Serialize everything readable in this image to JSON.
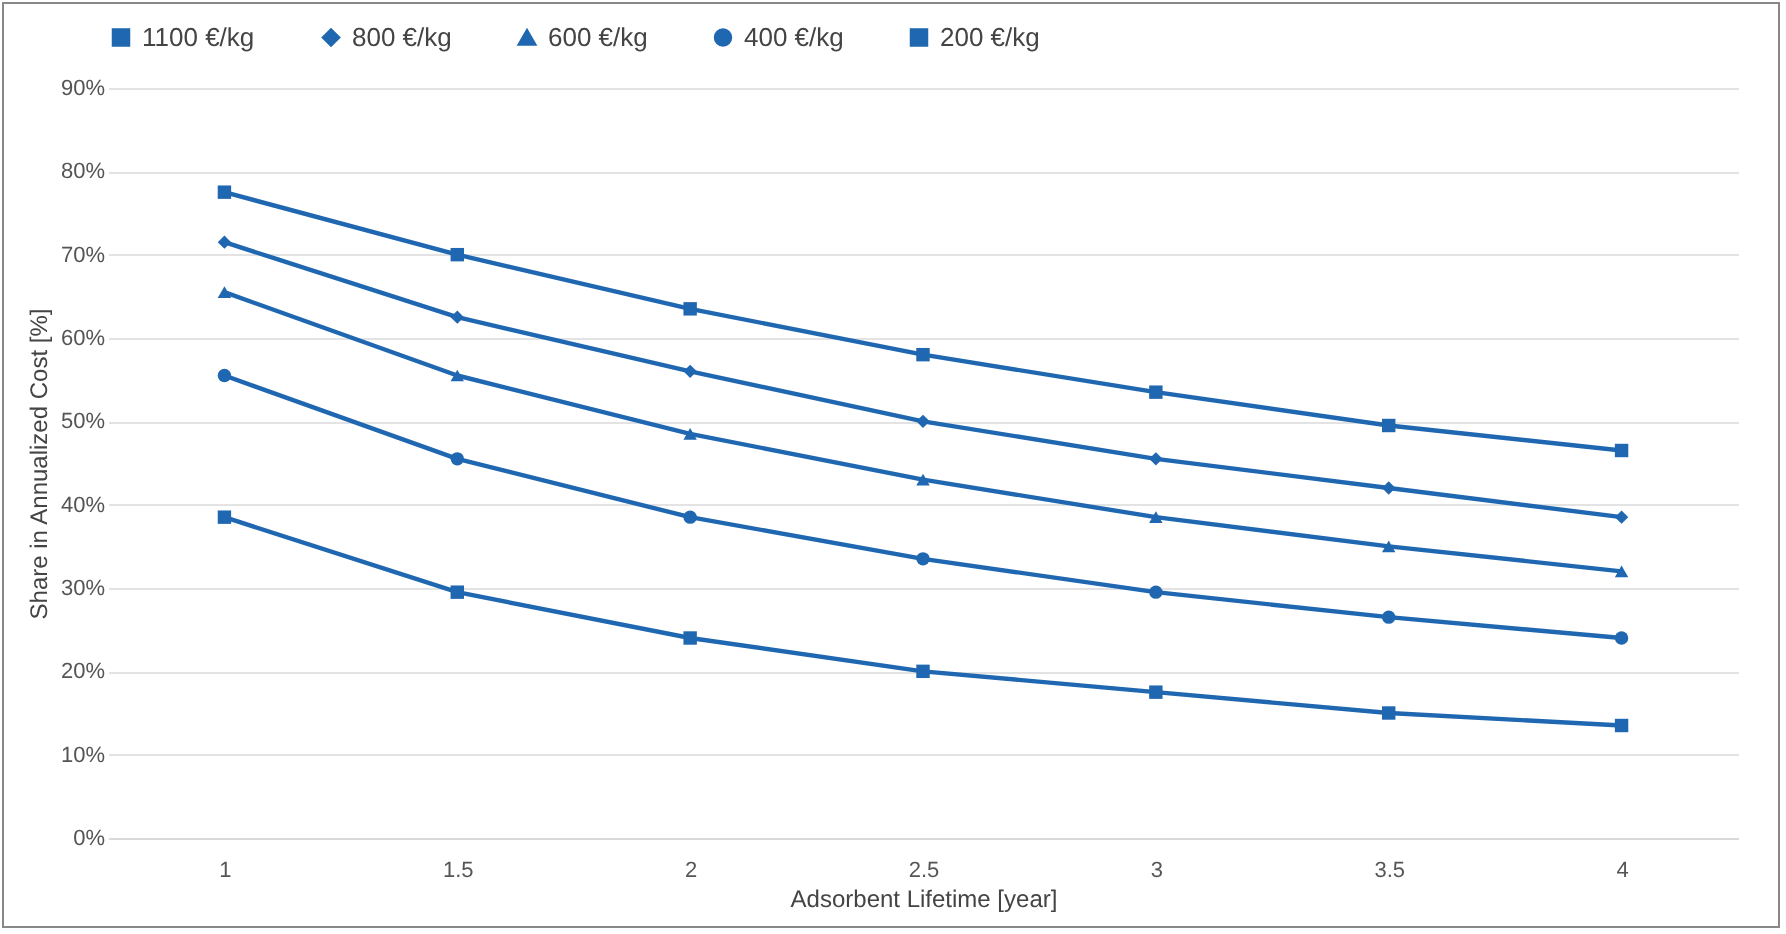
{
  "chart_data": {
    "type": "line",
    "xlabel": "Adsorbent Lifetime [year]",
    "ylabel": "Share in Annualized Cost [%]",
    "categories": [
      "1",
      "1.5",
      "2",
      "2.5",
      "3",
      "3.5",
      "4"
    ],
    "series": [
      {
        "name": "1100 €/kg",
        "color": "#1f67b1",
        "marker": "square",
        "values": [
          77.5,
          70,
          63.5,
          58,
          53.5,
          49.5,
          46.5
        ]
      },
      {
        "name": "800 €/kg",
        "color": "#1f67b1",
        "marker": "diamond",
        "values": [
          71.5,
          62.5,
          56,
          50,
          45.5,
          42,
          38.5
        ]
      },
      {
        "name": "600 €/kg",
        "color": "#1f67b1",
        "marker": "triangle",
        "values": [
          65.5,
          55.5,
          48.5,
          43,
          38.5,
          35,
          32
        ]
      },
      {
        "name": "400 €/kg",
        "color": "#1f67b1",
        "marker": "circle",
        "values": [
          55.5,
          45.5,
          38.5,
          33.5,
          29.5,
          26.5,
          24
        ]
      },
      {
        "name": "200 €/kg",
        "color": "#1f67b1",
        "marker": "square",
        "values": [
          38.5,
          29.5,
          24,
          20,
          17.5,
          15,
          13.5
        ]
      }
    ],
    "ylim": [
      0,
      90
    ],
    "yticks": [
      {
        "value": 0,
        "label": "0%"
      },
      {
        "value": 10,
        "label": "10%"
      },
      {
        "value": 20,
        "label": "20%"
      },
      {
        "value": 30,
        "label": "30%"
      },
      {
        "value": 40,
        "label": "40%"
      },
      {
        "value": 50,
        "label": "50%"
      },
      {
        "value": 60,
        "label": "60%"
      },
      {
        "value": 70,
        "label": "70%"
      },
      {
        "value": 80,
        "label": "80%"
      },
      {
        "value": 90,
        "label": "90%"
      }
    ],
    "grid": "y",
    "legend": "top",
    "line_style": "solid"
  }
}
